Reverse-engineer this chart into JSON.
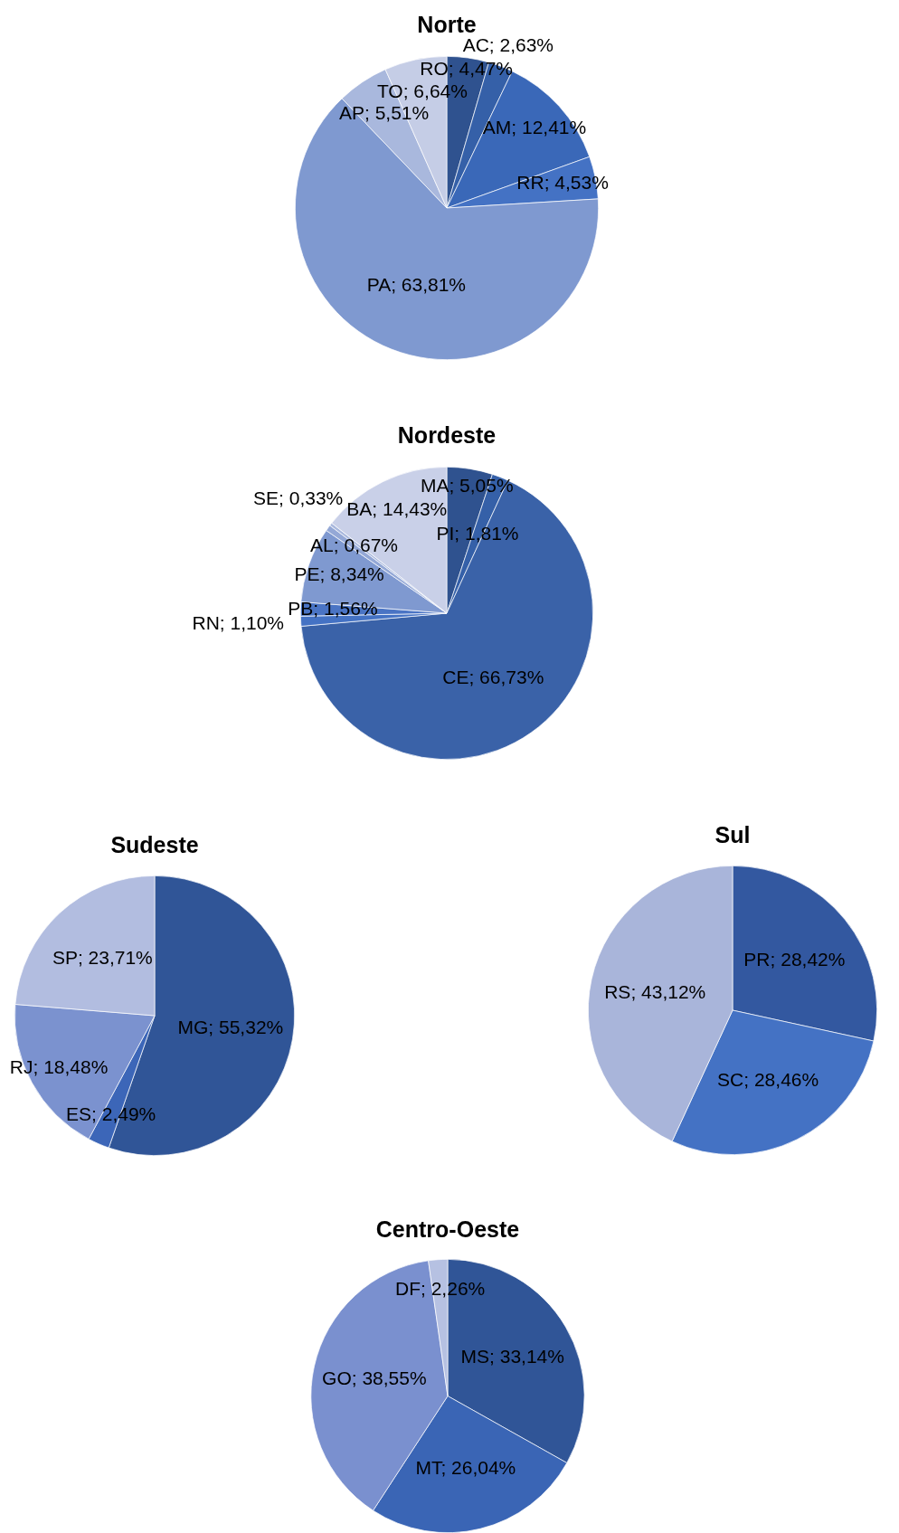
{
  "chart_data": [
    {
      "type": "pie",
      "title": "Norte",
      "categories": [
        "RO",
        "AC",
        "AM",
        "RR",
        "PA",
        "AP",
        "TO"
      ],
      "values": [
        4.47,
        2.63,
        12.41,
        4.53,
        63.81,
        5.51,
        6.64
      ],
      "colors": [
        "#2f528f",
        "#3560a8",
        "#3a68b8",
        "#4472c4",
        "#7f99d0",
        "#a9b8dd",
        "#c5cde6"
      ],
      "value_labels": [
        "4,47%",
        "2,63%",
        "12,41%",
        "4,53%",
        "63,81%",
        "5,51%",
        "6,64%"
      ],
      "legend": false
    },
    {
      "type": "pie",
      "title": "Nordeste",
      "categories": [
        "MA",
        "PI",
        "CE",
        "RN",
        "PB",
        "PE",
        "AL",
        "SE",
        "BA"
      ],
      "values": [
        5.05,
        1.81,
        66.73,
        1.1,
        1.56,
        8.34,
        0.67,
        0.33,
        14.43
      ],
      "colors": [
        "#2f528f",
        "#3560a8",
        "#3a62a8",
        "#4472c4",
        "#4a74c4",
        "#7f99d0",
        "#94a8d6",
        "#a9b8dd",
        "#c9d0e8"
      ],
      "value_labels": [
        "5,05%",
        "1,81%",
        "66,73%",
        "1,10%",
        "1,56%",
        "8,34%",
        "0,67%",
        "0,33%",
        "14,43%"
      ],
      "legend": false
    },
    {
      "type": "pie",
      "title": "Sudeste",
      "categories": [
        "MG",
        "ES",
        "RJ",
        "SP"
      ],
      "values": [
        55.32,
        2.49,
        18.48,
        23.71
      ],
      "colors": [
        "#305597",
        "#3c66b8",
        "#7b92cf",
        "#b2bde0"
      ],
      "value_labels": [
        "55,32%",
        "2,49%",
        "18,48%",
        "23,71%"
      ],
      "legend": false
    },
    {
      "type": "pie",
      "title": "Sul",
      "categories": [
        "PR",
        "SC",
        "RS"
      ],
      "values": [
        28.42,
        28.46,
        43.12
      ],
      "colors": [
        "#3358a0",
        "#4472c4",
        "#a9b5da"
      ],
      "value_labels": [
        "28,42%",
        "28,46%",
        "43,12%"
      ],
      "legend": false
    },
    {
      "type": "pie",
      "title": "Centro-Oeste",
      "categories": [
        "MS",
        "MT",
        "GO",
        "DF"
      ],
      "values": [
        33.14,
        26.04,
        38.55,
        2.26
      ],
      "colors": [
        "#305597",
        "#3a65b5",
        "#7a90cf",
        "#b6c1e2"
      ],
      "value_labels": [
        "33,14%",
        "26,04%",
        "38,55%",
        "2,26%"
      ],
      "legend": false
    }
  ]
}
